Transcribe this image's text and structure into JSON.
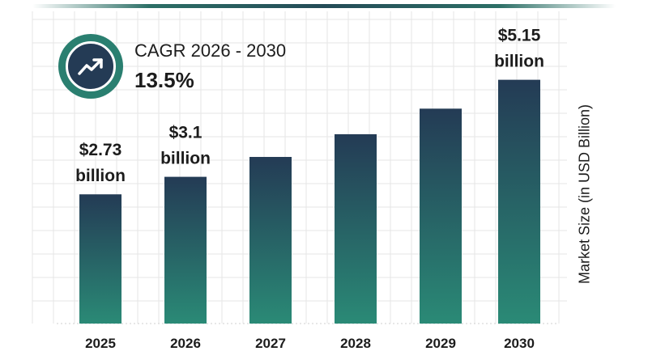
{
  "cagr": {
    "label": "CAGR 2026 - 2030",
    "value": "13.5%",
    "icon": "trending-up-icon"
  },
  "colors": {
    "bar_top": "#243b55",
    "bar_bottom": "#2a8a76",
    "badge_ring": "#2a7f70",
    "grid": "#e6e6e6"
  },
  "chart_data": {
    "type": "bar",
    "categories": [
      "2025",
      "2026",
      "2027",
      "2028",
      "2029",
      "2030"
    ],
    "values": [
      2.73,
      3.1,
      3.52,
      4.0,
      4.54,
      5.15
    ],
    "data_labels": [
      [
        "$2.73",
        "billion"
      ],
      [
        "$3.1",
        "billion"
      ],
      null,
      null,
      null,
      [
        "$5.15",
        "billion"
      ]
    ],
    "ylabel": "Market Size (in USD Billion)",
    "xlabel": "",
    "ylim": [
      0,
      5.4
    ],
    "grid": true,
    "y_axis_tick_labels": false
  }
}
